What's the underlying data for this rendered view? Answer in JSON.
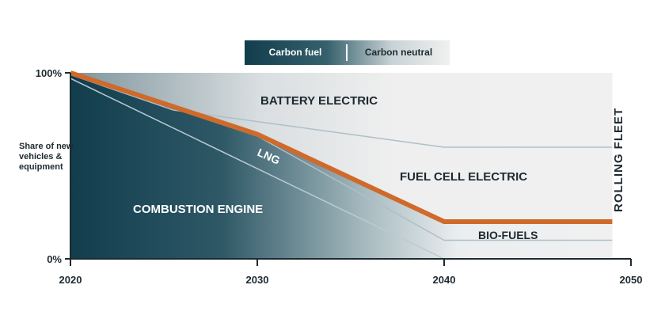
{
  "legend": {
    "carbon_fuel": "Carbon fuel",
    "carbon_neutral": "Carbon neutral"
  },
  "chart_data": {
    "type": "area",
    "title": "",
    "ylabel": "Share of new vehicles & equipment",
    "xlim": [
      2020,
      2050
    ],
    "ylim": [
      0,
      100
    ],
    "x_ticks": [
      "2020",
      "2030",
      "2040",
      "2050"
    ],
    "y_ticks": [
      "0%",
      "100%"
    ],
    "right_label": "ROLLING FLEET",
    "series": [
      {
        "name": "COMBUSTION ENGINE",
        "x": [
          2020,
          2040
        ],
        "values": [
          97,
          0
        ]
      },
      {
        "name": "LNG",
        "x": [
          2020,
          2030,
          2040
        ],
        "values": [
          99,
          66,
          20
        ]
      },
      {
        "name": "BIO-FUELS",
        "x": [
          2020,
          2030,
          2040,
          2049
        ],
        "values": [
          99,
          66,
          10,
          10
        ]
      },
      {
        "name": "FUEL CELL ELECTRIC",
        "x": [
          2020,
          2025.5,
          2040,
          2049
        ],
        "values": [
          99,
          80,
          60,
          60
        ]
      },
      {
        "name": "BATTERY ELECTRIC",
        "x": [
          2020,
          2049
        ],
        "values": [
          100,
          100
        ]
      }
    ],
    "carbon_fuel_boundary": {
      "x": [
        2020,
        2030,
        2040,
        2049
      ],
      "values": [
        100,
        67,
        20,
        20
      ]
    },
    "colors": {
      "carbon_fuel": "#123d4d",
      "carbon_neutral": "#f0f0f0",
      "boundary": "#cf6a2a",
      "area_lines": "#aebfc8"
    }
  }
}
